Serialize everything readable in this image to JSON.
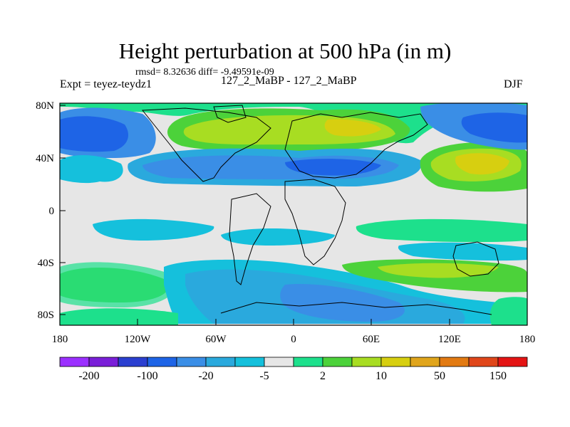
{
  "title": "Height perturbation at 500 hPa (in m)",
  "stats_line": "rmsd= 8.32636 diff= -9.49591e-09",
  "left_label": "Expt = teyez-teydz1",
  "center_label": "127_2_MaBP - 127_2_MaBP",
  "right_label": "DJF",
  "x_ticks": [
    "180",
    "120W",
    "60W",
    "0",
    "60E",
    "120E",
    "180"
  ],
  "y_ticks": [
    "80N",
    "40N",
    "0",
    "40S",
    "80S"
  ],
  "colorbar": {
    "colors": [
      "#9b30ff",
      "#7a1fd8",
      "#2b3fd0",
      "#1e64e6",
      "#3a8ee6",
      "#2aa9dd",
      "#15c0dc",
      "#e6e6e6",
      "#1de08c",
      "#4cd23a",
      "#a8dd22",
      "#d7cf10",
      "#e0a51c",
      "#e27a12",
      "#e0461a",
      "#e41414"
    ],
    "labels": [
      "-200",
      "-100",
      "-20",
      "-5",
      "2",
      "10",
      "50",
      "150"
    ]
  }
}
